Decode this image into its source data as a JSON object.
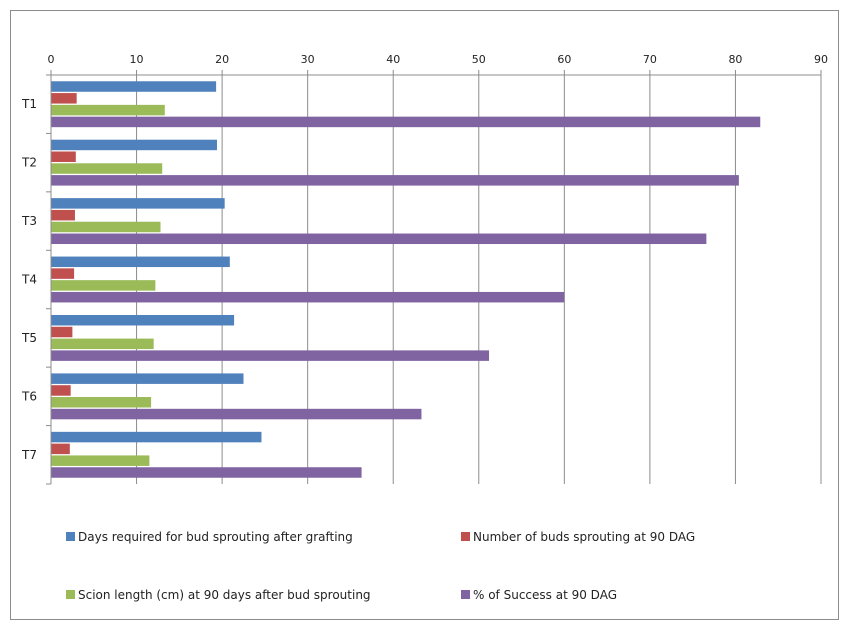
{
  "chart_data": {
    "type": "bar",
    "orientation": "horizontal",
    "xaxis_position": "top",
    "categories": [
      "T1",
      "T2",
      "T3",
      "T4",
      "T5",
      "T6",
      "T7"
    ],
    "series": [
      {
        "name": "Days required for bud sprouting after grafting",
        "color": "#4f81bd",
        "values": [
          19.3,
          19.4,
          20.3,
          20.9,
          21.4,
          22.5,
          24.6
        ]
      },
      {
        "name": "Number of buds sprouting at 90 DAG",
        "color": "#c0504d",
        "values": [
          3.0,
          2.9,
          2.8,
          2.7,
          2.5,
          2.3,
          2.2
        ]
      },
      {
        "name": "Scion length (cm) at 90 days after bud sprouting",
        "color": "#9bbb59",
        "values": [
          13.3,
          13.0,
          12.8,
          12.2,
          12.0,
          11.7,
          11.5
        ]
      },
      {
        "name": "% of  Success at 90 DAG",
        "color": "#8064a2",
        "values": [
          82.9,
          80.4,
          76.6,
          60.0,
          51.2,
          43.3,
          36.3
        ]
      }
    ],
    "xlim": [
      0,
      90
    ],
    "xticks": [
      "0",
      "10",
      "20",
      "30",
      "40",
      "50",
      "60",
      "70",
      "80",
      "90"
    ],
    "grid": true,
    "legend_position": "bottom"
  }
}
